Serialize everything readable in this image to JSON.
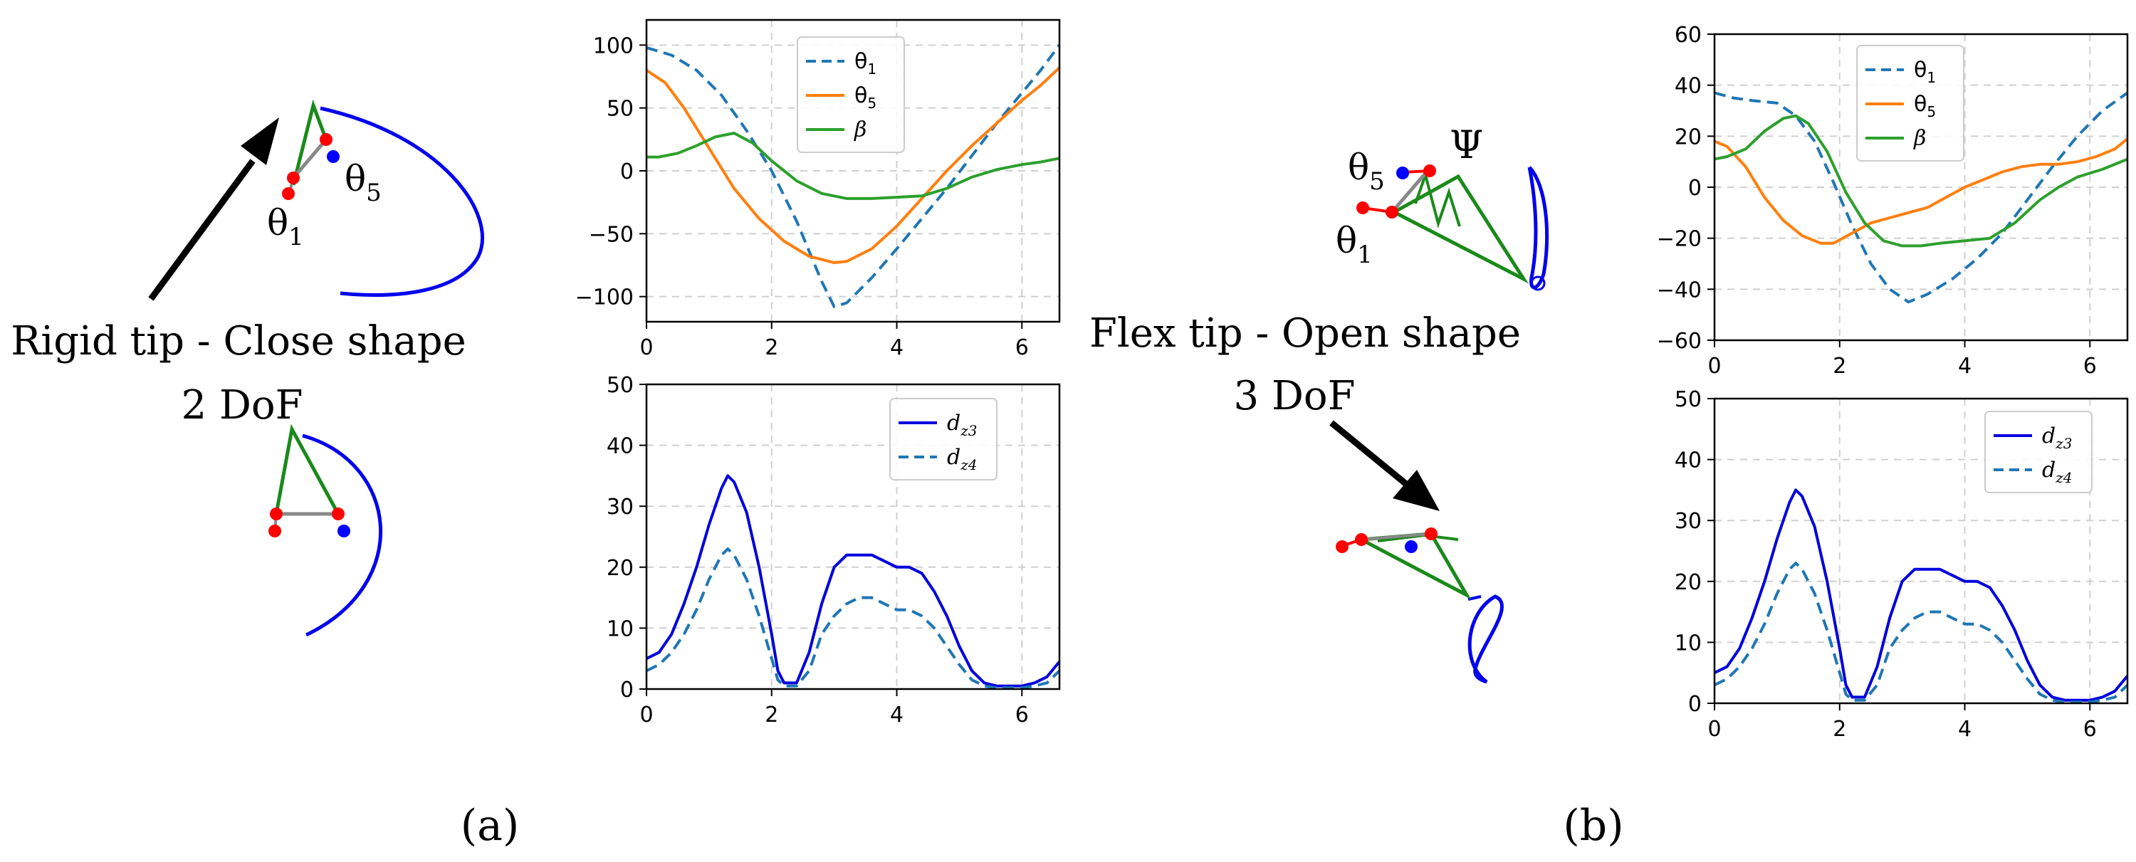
{
  "panel_labels": {
    "a": "(a)",
    "b": "(b)"
  },
  "colors": {
    "theta1": "#1f77b4",
    "theta5": "#ff7f0e",
    "beta": "#2ca02c",
    "dz3": "#0000dd",
    "dz4": "#1f77b4",
    "blue_curve": "#0000ee",
    "link_green": "#1a8a1a",
    "joint_red": "#ff0000",
    "joint_blue": "#0000ff",
    "link_gray": "#888888",
    "grid": "#d0d0d0"
  },
  "diagram_a": {
    "caption": "Rigid tip - Close shape",
    "dof": "2 DoF",
    "label_theta1": "θ",
    "label_theta1_sub": "1",
    "label_theta5": "θ",
    "label_theta5_sub": "5"
  },
  "diagram_b": {
    "caption": "Flex tip - Open shape",
    "dof": "3 DoF",
    "label_theta1": "θ",
    "label_theta1_sub": "1",
    "label_theta5": "θ",
    "label_theta5_sub": "5",
    "label_psi": "Ψ"
  },
  "chart_data": [
    {
      "id": "a-angles",
      "type": "line",
      "xlim": [
        0,
        6.6
      ],
      "ylim": [
        -120,
        120
      ],
      "xticks": [
        0,
        2,
        4,
        6
      ],
      "yticks": [
        -100,
        -50,
        0,
        50,
        100
      ],
      "grid": true,
      "legend": "top-center",
      "series": [
        {
          "name": "θ",
          "sub": "1",
          "color": "#1f77b4",
          "dash": true,
          "x": [
            0,
            0.4,
            0.8,
            1.2,
            1.6,
            2.0,
            2.4,
            2.8,
            3.0,
            3.2,
            3.6,
            4.0,
            4.4,
            4.8,
            5.2,
            5.6,
            6.0,
            6.3,
            6.6
          ],
          "y": [
            98,
            92,
            80,
            60,
            32,
            0,
            -40,
            -88,
            -108,
            -105,
            -85,
            -62,
            -38,
            -14,
            12,
            38,
            62,
            80,
            100
          ]
        },
        {
          "name": "θ",
          "sub": "5",
          "color": "#ff7f0e",
          "dash": false,
          "x": [
            0,
            0.3,
            0.6,
            1.0,
            1.4,
            1.8,
            2.2,
            2.6,
            3.0,
            3.2,
            3.6,
            4.0,
            4.4,
            4.8,
            5.2,
            5.6,
            6.0,
            6.3,
            6.6
          ],
          "y": [
            80,
            70,
            50,
            18,
            -14,
            -38,
            -56,
            -68,
            -73,
            -72,
            -62,
            -44,
            -22,
            0,
            20,
            38,
            56,
            68,
            82
          ]
        },
        {
          "name": "β",
          "sub": "",
          "color": "#2ca02c",
          "dash": false,
          "x": [
            0,
            0.2,
            0.5,
            0.8,
            1.1,
            1.4,
            1.7,
            2.0,
            2.4,
            2.8,
            3.2,
            3.6,
            4.0,
            4.4,
            4.8,
            5.2,
            5.6,
            6.0,
            6.3,
            6.6
          ],
          "y": [
            11,
            11,
            14,
            20,
            27,
            30,
            22,
            8,
            -8,
            -18,
            -22,
            -22,
            -21,
            -20,
            -14,
            -5,
            1,
            5,
            7,
            10
          ]
        }
      ]
    },
    {
      "id": "a-dz",
      "type": "line",
      "xlim": [
        0,
        6.6
      ],
      "ylim": [
        0,
        50
      ],
      "xticks": [
        0,
        2,
        4,
        6
      ],
      "yticks": [
        0,
        10,
        20,
        30,
        40,
        50
      ],
      "grid": true,
      "legend": "top-right",
      "series": [
        {
          "name": "d",
          "sub": "z3",
          "color": "#0000dd",
          "dash": false,
          "x": [
            0,
            0.2,
            0.4,
            0.6,
            0.8,
            1.0,
            1.2,
            1.3,
            1.4,
            1.6,
            1.8,
            2.0,
            2.1,
            2.2,
            2.4,
            2.6,
            2.8,
            3.0,
            3.2,
            3.4,
            3.6,
            3.8,
            4.0,
            4.2,
            4.4,
            4.6,
            4.8,
            5.0,
            5.2,
            5.4,
            5.6,
            5.8,
            6.0,
            6.2,
            6.4,
            6.6
          ],
          "y": [
            5,
            6,
            9,
            14,
            20,
            27,
            33,
            35,
            34,
            29,
            20,
            9,
            3,
            1,
            1,
            6,
            14,
            20,
            22,
            22,
            22,
            21,
            20,
            20,
            19,
            16,
            12,
            7,
            3,
            1,
            0.5,
            0.5,
            0.5,
            1,
            2,
            4.5
          ]
        },
        {
          "name": "d",
          "sub": "z4",
          "color": "#1f77b4",
          "dash": true,
          "x": [
            0,
            0.2,
            0.4,
            0.6,
            0.8,
            1.0,
            1.2,
            1.3,
            1.4,
            1.6,
            1.8,
            2.0,
            2.1,
            2.2,
            2.4,
            2.6,
            2.8,
            3.0,
            3.2,
            3.4,
            3.6,
            3.8,
            4.0,
            4.2,
            4.4,
            4.6,
            4.8,
            5.0,
            5.2,
            5.4,
            5.6,
            5.8,
            6.0,
            6.2,
            6.4,
            6.6
          ],
          "y": [
            3,
            4,
            6,
            9,
            13,
            18,
            22,
            23,
            22,
            18,
            12,
            5,
            1.5,
            0.5,
            0.5,
            3,
            9,
            12,
            14,
            15,
            15,
            14,
            13,
            13,
            12,
            10,
            7,
            4,
            1.5,
            0.5,
            0.2,
            0.2,
            0.2,
            0.5,
            1,
            3
          ]
        }
      ]
    },
    {
      "id": "b-angles",
      "type": "line",
      "xlim": [
        0,
        6.6
      ],
      "ylim": [
        -60,
        60
      ],
      "xticks": [
        0,
        2,
        4,
        6
      ],
      "yticks": [
        -60,
        -40,
        -20,
        0,
        20,
        40,
        60
      ],
      "grid": true,
      "legend": "top-center",
      "series": [
        {
          "name": "θ",
          "sub": "1",
          "color": "#1f77b4",
          "dash": true,
          "x": [
            0,
            0.3,
            0.6,
            1.0,
            1.3,
            1.6,
            1.9,
            2.2,
            2.5,
            2.8,
            3.1,
            3.4,
            3.8,
            4.2,
            4.6,
            5.0,
            5.4,
            5.8,
            6.2,
            6.6
          ],
          "y": [
            37,
            35,
            34,
            33,
            28,
            18,
            2,
            -15,
            -30,
            -40,
            -45,
            -42,
            -36,
            -28,
            -18,
            -5,
            8,
            20,
            30,
            37
          ]
        },
        {
          "name": "θ",
          "sub": "5",
          "color": "#ff7f0e",
          "dash": false,
          "x": [
            0,
            0.2,
            0.5,
            0.8,
            1.1,
            1.4,
            1.7,
            1.9,
            2.2,
            2.5,
            2.8,
            3.1,
            3.4,
            3.7,
            4.0,
            4.3,
            4.6,
            4.9,
            5.2,
            5.5,
            5.8,
            6.1,
            6.4,
            6.6
          ],
          "y": [
            18,
            16,
            8,
            -4,
            -13,
            -19,
            -22,
            -22,
            -18,
            -14,
            -12,
            -10,
            -8,
            -4,
            0,
            3,
            6,
            8,
            9,
            9,
            10,
            12,
            15,
            19
          ]
        },
        {
          "name": "β",
          "sub": "",
          "color": "#2ca02c",
          "dash": false,
          "x": [
            0,
            0.2,
            0.5,
            0.8,
            1.1,
            1.3,
            1.5,
            1.8,
            2.1,
            2.4,
            2.7,
            3.0,
            3.3,
            3.6,
            4.0,
            4.4,
            4.8,
            5.2,
            5.5,
            5.8,
            6.2,
            6.6
          ],
          "y": [
            11,
            12,
            15,
            22,
            27,
            28,
            25,
            14,
            -2,
            -14,
            -21,
            -23,
            -23,
            -22,
            -21,
            -20,
            -14,
            -5,
            0,
            4,
            7,
            11
          ]
        }
      ]
    },
    {
      "id": "b-dz",
      "type": "line",
      "xlim": [
        0,
        6.6
      ],
      "ylim": [
        0,
        50
      ],
      "xticks": [
        0,
        2,
        4,
        6
      ],
      "yticks": [
        0,
        10,
        20,
        30,
        40,
        50
      ],
      "grid": true,
      "legend": "top-right",
      "series": [
        {
          "name": "d",
          "sub": "z3",
          "color": "#0000dd",
          "dash": false,
          "x": [
            0,
            0.2,
            0.4,
            0.6,
            0.8,
            1.0,
            1.2,
            1.3,
            1.4,
            1.6,
            1.8,
            2.0,
            2.1,
            2.2,
            2.4,
            2.6,
            2.8,
            3.0,
            3.2,
            3.4,
            3.6,
            3.8,
            4.0,
            4.2,
            4.4,
            4.6,
            4.8,
            5.0,
            5.2,
            5.4,
            5.6,
            5.8,
            6.0,
            6.2,
            6.4,
            6.6
          ],
          "y": [
            5,
            6,
            9,
            14,
            20,
            27,
            33,
            35,
            34,
            29,
            20,
            9,
            3,
            1,
            1,
            6,
            14,
            20,
            22,
            22,
            22,
            21,
            20,
            20,
            19,
            16,
            12,
            7,
            3,
            1,
            0.5,
            0.5,
            0.5,
            1,
            2,
            4.5
          ]
        },
        {
          "name": "d",
          "sub": "z4",
          "color": "#1f77b4",
          "dash": true,
          "x": [
            0,
            0.2,
            0.4,
            0.6,
            0.8,
            1.0,
            1.2,
            1.3,
            1.4,
            1.6,
            1.8,
            2.0,
            2.1,
            2.2,
            2.4,
            2.6,
            2.8,
            3.0,
            3.2,
            3.4,
            3.6,
            3.8,
            4.0,
            4.2,
            4.4,
            4.6,
            4.8,
            5.0,
            5.2,
            5.4,
            5.6,
            5.8,
            6.0,
            6.2,
            6.4,
            6.6
          ],
          "y": [
            3,
            4,
            6,
            9,
            13,
            18,
            22,
            23,
            22,
            18,
            12,
            5,
            1.5,
            0.5,
            0.5,
            3,
            9,
            12,
            14,
            15,
            15,
            14,
            13,
            13,
            12,
            10,
            7,
            4,
            1.5,
            0.5,
            0.2,
            0.2,
            0.2,
            0.5,
            1,
            3
          ]
        }
      ]
    }
  ]
}
